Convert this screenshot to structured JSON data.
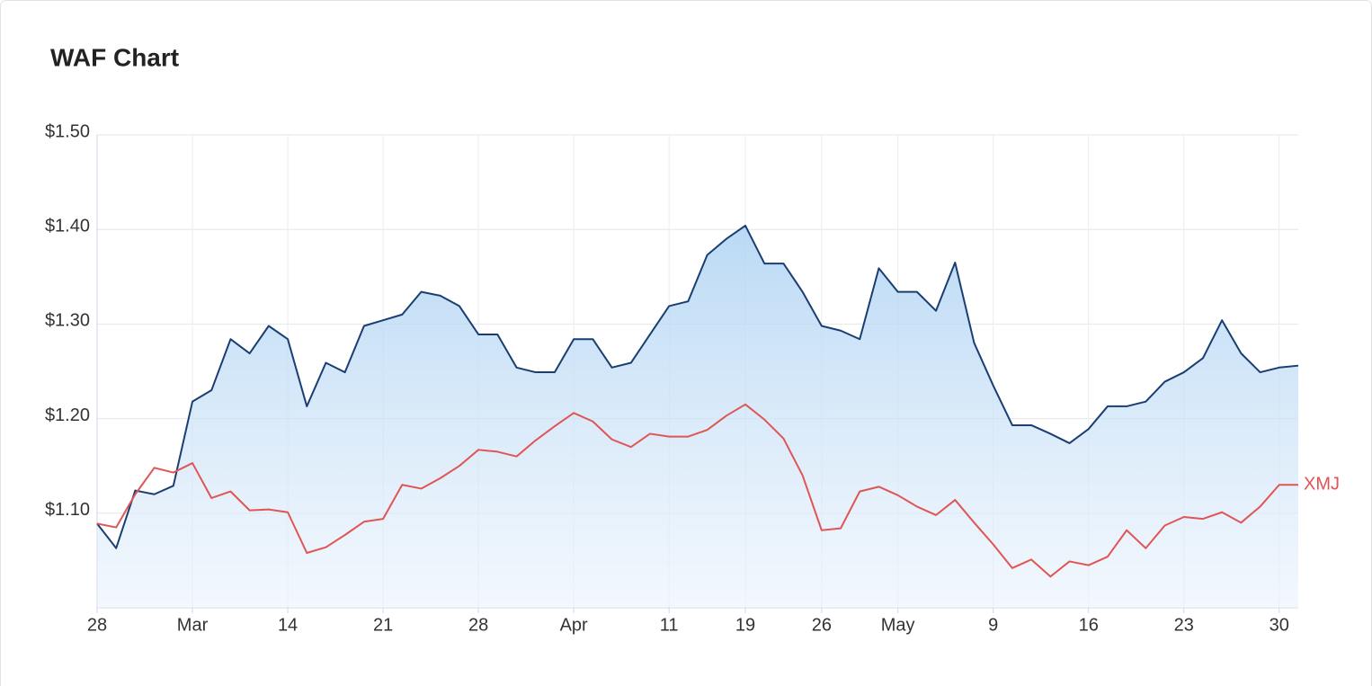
{
  "chart_data": {
    "type": "line",
    "title": "WAF Chart",
    "categories": [
      "28",
      null,
      null,
      null,
      null,
      "Mar",
      null,
      null,
      null,
      null,
      "14",
      null,
      null,
      null,
      null,
      "21",
      null,
      null,
      null,
      null,
      "28",
      null,
      null,
      null,
      null,
      "Apr",
      null,
      null,
      null,
      null,
      "11",
      null,
      null,
      null,
      "19",
      null,
      null,
      null,
      "26",
      null,
      null,
      null,
      "May",
      null,
      null,
      null,
      null,
      "9",
      null,
      null,
      null,
      null,
      "16",
      null,
      null,
      null,
      null,
      "23",
      null,
      null,
      null,
      null,
      "30",
      null
    ],
    "series": [
      {
        "color": "#1a3e72",
        "area": true,
        "values": [
          1.089,
          1.063,
          1.124,
          1.12,
          1.129,
          1.218,
          1.23,
          1.284,
          1.269,
          1.298,
          1.284,
          1.213,
          1.259,
          1.249,
          1.298,
          1.304,
          1.31,
          1.334,
          1.33,
          1.319,
          1.289,
          1.289,
          1.254,
          1.249,
          1.249,
          1.284,
          1.284,
          1.254,
          1.259,
          1.289,
          1.319,
          1.324,
          1.373,
          1.39,
          1.404,
          1.364,
          1.364,
          1.334,
          1.298,
          1.293,
          1.284,
          1.359,
          1.334,
          1.334,
          1.314,
          1.365,
          1.28,
          1.235,
          1.193,
          1.193,
          1.184,
          1.174,
          1.189,
          1.213,
          1.213,
          1.218,
          1.239,
          1.249,
          1.264,
          1.304,
          1.269,
          1.249,
          1.254,
          1.256
        ]
      },
      {
        "name": "XMJ",
        "color": "#e05555",
        "values": [
          1.089,
          1.085,
          1.12,
          1.148,
          1.143,
          1.153,
          1.116,
          1.123,
          1.103,
          1.104,
          1.101,
          1.058,
          1.064,
          1.077,
          1.091,
          1.094,
          1.13,
          1.126,
          1.137,
          1.15,
          1.167,
          1.165,
          1.16,
          1.177,
          1.192,
          1.206,
          1.197,
          1.178,
          1.17,
          1.184,
          1.181,
          1.181,
          1.188,
          1.203,
          1.215,
          1.199,
          1.179,
          1.14,
          1.082,
          1.084,
          1.123,
          1.128,
          1.119,
          1.107,
          1.098,
          1.114,
          1.09,
          1.067,
          1.042,
          1.051,
          1.033,
          1.049,
          1.045,
          1.054,
          1.082,
          1.063,
          1.087,
          1.096,
          1.094,
          1.101,
          1.09,
          1.107,
          1.13,
          1.13
        ]
      }
    ],
    "ylim": [
      1.0,
      1.5
    ],
    "yticks": [
      {
        "value": 1.1,
        "label": "$1.10"
      },
      {
        "value": 1.2,
        "label": "$1.20"
      },
      {
        "value": 1.3,
        "label": "$1.30"
      },
      {
        "value": 1.4,
        "label": "$1.40"
      },
      {
        "value": 1.5,
        "label": "$1.50"
      }
    ],
    "grid": true
  }
}
